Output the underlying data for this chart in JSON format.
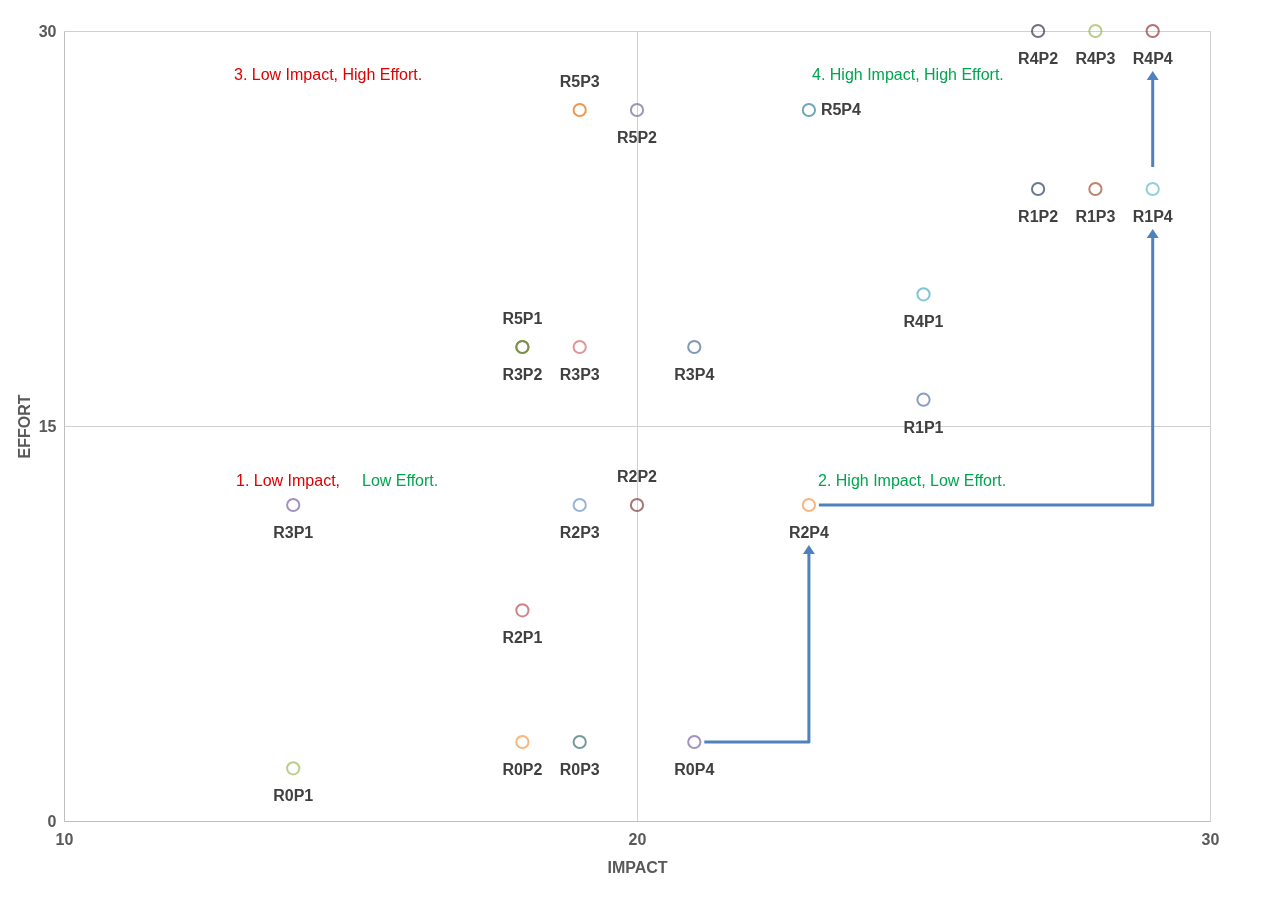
{
  "chart_data": {
    "type": "scatter",
    "xlabel": "IMPACT",
    "ylabel": "EFFORT",
    "xlim": [
      10,
      30
    ],
    "ylim": [
      0,
      30
    ],
    "xticks": [
      10,
      20,
      30
    ],
    "yticks": [
      0,
      15,
      30
    ],
    "grid": true,
    "marker": "circle",
    "legend": false,
    "series": [
      {
        "name": "R0P1",
        "color": "#9bbb59",
        "x": [
          14
        ],
        "values": [
          2
        ]
      },
      {
        "name": "R0P2",
        "color": "#f79646",
        "x": [
          18
        ],
        "values": [
          3
        ]
      },
      {
        "name": "R0P3",
        "color": "#3f6f73",
        "x": [
          19
        ],
        "values": [
          3
        ]
      },
      {
        "name": "R0P4",
        "color": "#8064a2",
        "x": [
          21
        ],
        "values": [
          3
        ]
      },
      {
        "name": "R2P1",
        "color": "#c0504d",
        "x": [
          18
        ],
        "values": [
          8
        ]
      },
      {
        "name": "R2P2",
        "color": "#7f3f3f",
        "x": [
          20
        ],
        "values": [
          12
        ]
      },
      {
        "name": "R2P3",
        "color": "#6f94c8",
        "x": [
          19
        ],
        "values": [
          12
        ]
      },
      {
        "name": "R2P4",
        "color": "#f79646",
        "x": [
          23
        ],
        "values": [
          12
        ]
      },
      {
        "name": "R3P1",
        "color": "#8064a2",
        "x": [
          14
        ],
        "values": [
          12
        ]
      },
      {
        "name": "R3P2",
        "color": "#4f6228",
        "x": [
          18
        ],
        "values": [
          18
        ]
      },
      {
        "name": "R5P1",
        "color": "#76923c",
        "x": [
          18
        ],
        "values": [
          18
        ]
      },
      {
        "name": "R3P3",
        "color": "#d46a6a",
        "x": [
          19
        ],
        "values": [
          18
        ]
      },
      {
        "name": "R3P4",
        "color": "#4f6d9a",
        "x": [
          21
        ],
        "values": [
          18
        ]
      },
      {
        "name": "R1P1",
        "color": "#5a74a8",
        "x": [
          25
        ],
        "values": [
          16
        ]
      },
      {
        "name": "R4P1",
        "color": "#4bacc6",
        "x": [
          25
        ],
        "values": [
          20
        ]
      },
      {
        "name": "R5P3",
        "color": "#e46c0a",
        "x": [
          19
        ],
        "values": [
          27
        ]
      },
      {
        "name": "R5P2",
        "color": "#7a6a9a",
        "x": [
          20
        ],
        "values": [
          27
        ]
      },
      {
        "name": "R5P4",
        "color": "#31859c",
        "x": [
          23
        ],
        "values": [
          27
        ]
      },
      {
        "name": "R1P2",
        "color": "#2e3f66",
        "x": [
          27
        ],
        "values": [
          24
        ]
      },
      {
        "name": "R1P3",
        "color": "#a0522d",
        "x": [
          28
        ],
        "values": [
          24
        ]
      },
      {
        "name": "R1P4",
        "color": "#64bcd0",
        "x": [
          29
        ],
        "values": [
          24
        ]
      },
      {
        "name": "R4P2",
        "color": "#403152",
        "x": [
          27
        ],
        "values": [
          30
        ]
      },
      {
        "name": "R4P3",
        "color": "#9bbb59",
        "x": [
          28
        ],
        "values": [
          30
        ]
      },
      {
        "name": "R4P4",
        "color": "#953735",
        "x": [
          29
        ],
        "values": [
          30
        ]
      }
    ],
    "annotations": [
      "3. Low Impact, High Effort.",
      "4. High Impact, High Effort.",
      "1. Low Impact,",
      "Low Effort.",
      "2. High Impact, Low Effort."
    ]
  }
}
